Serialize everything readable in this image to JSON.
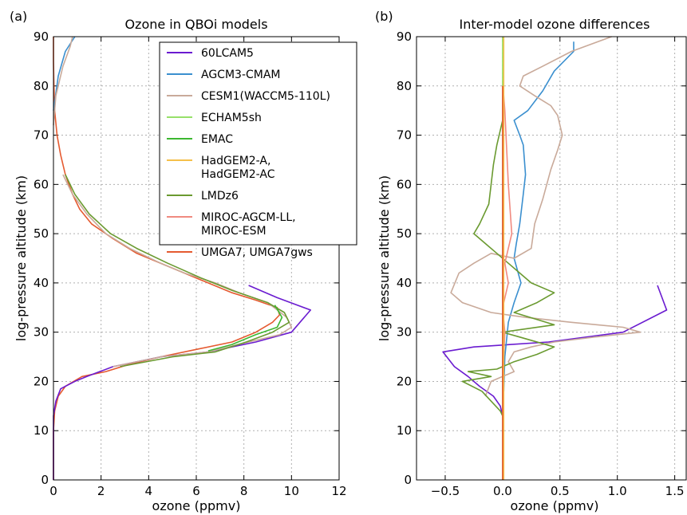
{
  "chart_data": [
    {
      "type": "line",
      "panel_label": "(a)",
      "title": "Ozone in QBOi models",
      "xlabel": "ozone (ppmv)",
      "ylabel": "log-pressure altitude (km)",
      "xlim": [
        0,
        12
      ],
      "ylim": [
        0,
        90
      ],
      "xticks": [
        0,
        2,
        4,
        6,
        8,
        10,
        12
      ],
      "yticks": [
        0,
        10,
        20,
        30,
        40,
        50,
        60,
        70,
        80,
        90
      ],
      "xtick_labels": [
        "0",
        "2",
        "4",
        "6",
        "8",
        "10",
        "12"
      ],
      "ytick_labels": [
        "0",
        "10",
        "20",
        "30",
        "40",
        "50",
        "60",
        "70",
        "80",
        "90"
      ],
      "grid": true,
      "legend_position": "top-right",
      "legend": [
        {
          "label": "60LCAM5",
          "color": "#6a1bd0"
        },
        {
          "label": "AGCM3-CMAM",
          "color": "#3a8fcf"
        },
        {
          "label": "CESM1(WACCM5-110L)",
          "color": "#c9aa9a"
        },
        {
          "label": "ECHAM5sh",
          "color": "#96e06a"
        },
        {
          "label": "EMAC",
          "color": "#3cb830"
        },
        {
          "label": "HadGEM2-A,",
          "label2": "HadGEM2-AC",
          "color": "#f5c04a"
        },
        {
          "label": "LMDz6",
          "color": "#6a9a30"
        },
        {
          "label": "MIROC-AGCM-LL,",
          "label2": "MIROC-ESM",
          "color": "#f08a80"
        },
        {
          "label": "UMGA7, UMGA7gws",
          "color": "#e55a30"
        }
      ],
      "series": [
        {
          "color": "#e55a30",
          "points": [
            [
              0,
              0
            ],
            [
              0,
              10
            ],
            [
              0.05,
              14
            ],
            [
              0.2,
              17
            ],
            [
              0.5,
              19
            ],
            [
              1.2,
              21
            ],
            [
              2.2,
              22
            ],
            [
              3.2,
              23.5
            ],
            [
              4.5,
              25
            ],
            [
              6,
              26.5
            ],
            [
              7.5,
              28
            ],
            [
              8.5,
              30
            ],
            [
              9.2,
              32
            ],
            [
              9.5,
              33.5
            ],
            [
              9.4,
              35
            ],
            [
              8.5,
              36.5
            ],
            [
              7.5,
              38
            ],
            [
              6.5,
              40
            ],
            [
              5,
              43
            ],
            [
              3.5,
              46
            ],
            [
              2.5,
              49
            ],
            [
              1.6,
              52
            ],
            [
              1.1,
              55
            ],
            [
              0.8,
              58
            ],
            [
              0.5,
              62
            ],
            [
              0.3,
              66
            ],
            [
              0.15,
              70
            ],
            [
              0.05,
              75
            ],
            [
              0.02,
              80
            ],
            [
              0,
              85
            ],
            [
              0,
              90
            ]
          ]
        },
        {
          "color": "#6a1bd0",
          "points": [
            [
              8.2,
              39.5
            ],
            [
              9.4,
              37
            ],
            [
              10.8,
              34.5
            ],
            [
              10,
              30
            ],
            [
              8.5,
              28
            ],
            [
              6.5,
              26
            ],
            [
              4.5,
              25
            ],
            [
              2.5,
              23
            ],
            [
              1.4,
              21
            ],
            [
              0.9,
              20
            ],
            [
              0.5,
              19
            ],
            [
              0.3,
              18.5
            ],
            [
              0.1,
              16
            ],
            [
              0,
              13
            ],
            [
              0,
              0
            ]
          ]
        },
        {
          "color": "#3a8fcf",
          "points": [
            [
              0,
              75
            ],
            [
              0.2,
              82
            ],
            [
              0.5,
              87
            ],
            [
              0.9,
              90
            ]
          ]
        },
        {
          "color": "#c9aa9a",
          "points": [
            [
              0,
              72
            ],
            [
              0.1,
              78
            ],
            [
              0.4,
              84
            ],
            [
              0.7,
              88
            ],
            [
              0.8,
              90
            ]
          ]
        },
        {
          "color": "#c9aa9a",
          "points": [
            [
              0.4,
              62
            ],
            [
              0.8,
              58
            ],
            [
              1.4,
              54
            ],
            [
              2.2,
              50
            ],
            [
              3.2,
              47
            ],
            [
              4.5,
              44
            ],
            [
              5.5,
              42
            ],
            [
              6.8,
              40
            ],
            [
              7.8,
              38
            ],
            [
              9,
              36
            ],
            [
              9.8,
              33
            ],
            [
              10,
              31
            ],
            [
              9.5,
              29.5
            ],
            [
              8.2,
              28
            ],
            [
              6.5,
              26
            ],
            [
              4.5,
              25
            ],
            [
              2.5,
              23
            ]
          ]
        },
        {
          "color": "#6a9a30",
          "points": [
            [
              0.5,
              62
            ],
            [
              0.9,
              58
            ],
            [
              1.5,
              54
            ],
            [
              2.4,
              50
            ],
            [
              3.5,
              47
            ],
            [
              4.8,
              44
            ],
            [
              6.2,
              41
            ],
            [
              7.5,
              38.5
            ],
            [
              9,
              36
            ],
            [
              9.7,
              34
            ],
            [
              9.9,
              32
            ],
            [
              9.2,
              30
            ],
            [
              8.1,
              28
            ],
            [
              6.8,
              26
            ],
            [
              5,
              25
            ],
            [
              2.8,
              23
            ]
          ]
        },
        {
          "color": "#3cb830",
          "points": [
            [
              9.3,
              35.5
            ],
            [
              9.6,
              33
            ],
            [
              9.4,
              31
            ],
            [
              8.5,
              29.5
            ],
            [
              7.5,
              27.5
            ],
            [
              6.5,
              26.2
            ]
          ]
        }
      ]
    },
    {
      "type": "line",
      "panel_label": "(b)",
      "title": "Inter-model ozone differences",
      "xlabel": "ozone (ppmv)",
      "ylabel": "log-pressure altitude (km)",
      "xlim": [
        -0.75,
        1.6
      ],
      "ylim": [
        0,
        90
      ],
      "xticks": [
        -0.5,
        0.0,
        0.5,
        1.0,
        1.5
      ],
      "yticks": [
        0,
        10,
        20,
        30,
        40,
        50,
        60,
        70,
        80,
        90
      ],
      "xtick_labels": [
        "−0.5",
        "0.0",
        "0.5",
        "1.0",
        "1.5"
      ],
      "ytick_labels": [
        "0",
        "10",
        "20",
        "30",
        "40",
        "50",
        "60",
        "70",
        "80",
        "90"
      ],
      "grid": true,
      "series": [
        {
          "color": "#6a1bd0",
          "points": [
            [
              1.35,
              39.5
            ],
            [
              1.43,
              34.5
            ],
            [
              1.05,
              30
            ],
            [
              0.4,
              28
            ],
            [
              -0.25,
              27
            ],
            [
              -0.52,
              26
            ],
            [
              -0.42,
              23
            ],
            [
              -0.3,
              21
            ],
            [
              -0.2,
              19
            ],
            [
              -0.08,
              17
            ],
            [
              -0.02,
              15
            ],
            [
              0,
              13
            ]
          ]
        },
        {
          "color": "#3a8fcf",
          "points": [
            [
              0.62,
              89
            ],
            [
              0.62,
              87
            ],
            [
              0.45,
              83
            ],
            [
              0.35,
              79
            ],
            [
              0.22,
              75
            ],
            [
              0.1,
              73
            ],
            [
              0.15,
              70
            ],
            [
              0.18,
              68
            ],
            [
              0.2,
              62
            ],
            [
              0.18,
              58
            ],
            [
              0.15,
              52
            ],
            [
              0.12,
              48
            ],
            [
              0.1,
              45
            ],
            [
              0.16,
              40
            ],
            [
              0.1,
              36
            ],
            [
              0.05,
              32
            ],
            [
              0.02,
              25
            ],
            [
              0.01,
              18
            ]
          ]
        },
        {
          "color": "#c9aa9a",
          "points": [
            [
              0.95,
              90
            ],
            [
              0.6,
              87
            ],
            [
              0.35,
              84
            ],
            [
              0.18,
              82
            ],
            [
              0.15,
              80
            ],
            [
              0.28,
              78
            ],
            [
              0.42,
              76
            ],
            [
              0.48,
              74
            ],
            [
              0.5,
              72
            ],
            [
              0.52,
              70
            ],
            [
              0.48,
              67
            ],
            [
              0.42,
              63
            ],
            [
              0.35,
              57
            ],
            [
              0.28,
              52
            ],
            [
              0.25,
              47
            ],
            [
              0.1,
              45
            ],
            [
              -0.1,
              46
            ],
            [
              -0.25,
              44
            ],
            [
              -0.38,
              42
            ],
            [
              -0.45,
              38
            ],
            [
              -0.35,
              36
            ],
            [
              -0.1,
              34
            ],
            [
              0.2,
              33
            ],
            [
              0.6,
              32
            ],
            [
              1.05,
              31
            ],
            [
              1.2,
              30
            ],
            [
              0.8,
              29
            ],
            [
              0.45,
              28
            ],
            [
              0.25,
              27
            ],
            [
              0.1,
              26
            ],
            [
              0.05,
              24
            ],
            [
              0.1,
              22
            ],
            [
              -0.1,
              20
            ],
            [
              -0.15,
              17
            ]
          ]
        },
        {
          "color": "#6a9a30",
          "points": [
            [
              0,
              78
            ],
            [
              0,
              73
            ],
            [
              -0.05,
              68
            ],
            [
              -0.08,
              64
            ],
            [
              -0.1,
              60
            ],
            [
              -0.12,
              56
            ],
            [
              -0.2,
              52
            ],
            [
              -0.25,
              50
            ],
            [
              -0.15,
              48
            ],
            [
              -0.05,
              46
            ],
            [
              0.05,
              44
            ],
            [
              0.15,
              42
            ],
            [
              0.25,
              40
            ],
            [
              0.45,
              38
            ],
            [
              0.3,
              36
            ],
            [
              0.1,
              34
            ],
            [
              0.45,
              31.5
            ],
            [
              0,
              30
            ],
            [
              0.15,
              29
            ],
            [
              0.45,
              27
            ],
            [
              0.3,
              25.5
            ],
            [
              0.1,
              24
            ],
            [
              -0.05,
              22.5
            ],
            [
              -0.3,
              22
            ],
            [
              -0.1,
              21
            ],
            [
              -0.35,
              20
            ],
            [
              -0.18,
              18
            ],
            [
              -0.1,
              16
            ],
            [
              -0.02,
              14
            ],
            [
              0,
              13
            ]
          ]
        },
        {
          "color": "#f08a80",
          "points": [
            [
              0,
              81
            ],
            [
              0.02,
              75
            ],
            [
              0.05,
              60
            ],
            [
              0.08,
              50
            ],
            [
              0.02,
              44
            ],
            [
              0.05,
              40
            ],
            [
              0,
              35
            ],
            [
              0.02,
              30
            ],
            [
              0,
              20
            ],
            [
              0,
              0
            ]
          ]
        },
        {
          "color": "#96e06a",
          "points": [
            [
              0,
              90
            ],
            [
              0,
              0
            ]
          ]
        },
        {
          "color": "#f5c04a",
          "points": [
            [
              0.01,
              90
            ],
            [
              0.01,
              0
            ]
          ]
        },
        {
          "color": "#e55a30",
          "points": [
            [
              0,
              80
            ],
            [
              0,
              0
            ]
          ]
        }
      ]
    }
  ]
}
